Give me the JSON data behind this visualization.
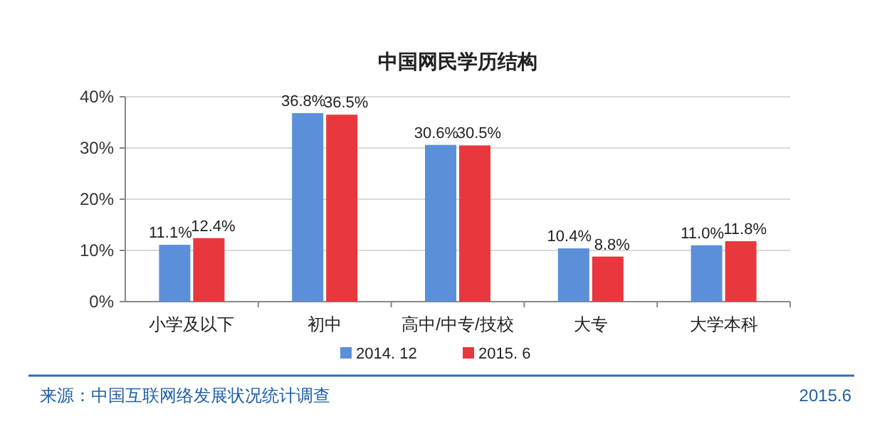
{
  "chart_data": {
    "type": "bar",
    "title": "中国网民学历结构",
    "categories": [
      "小学及以下",
      "初中",
      "高中/中专/技校",
      "大专",
      "大学本科"
    ],
    "series": [
      {
        "name": "2014. 12",
        "color": "#5b8fd9",
        "values": [
          11.1,
          36.8,
          30.6,
          10.4,
          11.0
        ],
        "value_labels": [
          "11.1%",
          "36.8%",
          "30.6%",
          "10.4%",
          "11.0%"
        ]
      },
      {
        "name": "2015. 6",
        "color": "#e8383d",
        "values": [
          12.4,
          36.5,
          30.5,
          8.8,
          11.8
        ],
        "value_labels": [
          "12.4%",
          "36.5%",
          "30.5%",
          "8.8%",
          "11.8%"
        ]
      }
    ],
    "ylim": [
      0,
      40
    ],
    "yticks": [
      {
        "value": 0,
        "label": "0%"
      },
      {
        "value": 10,
        "label": "10%"
      },
      {
        "value": 20,
        "label": "20%"
      },
      {
        "value": 30,
        "label": "30%"
      },
      {
        "value": 40,
        "label": "40%"
      }
    ],
    "grid": "y",
    "legend": "bottom",
    "annotations": [
      "来源：中国互联网络发展状况统计调查",
      "2015.6"
    ]
  }
}
